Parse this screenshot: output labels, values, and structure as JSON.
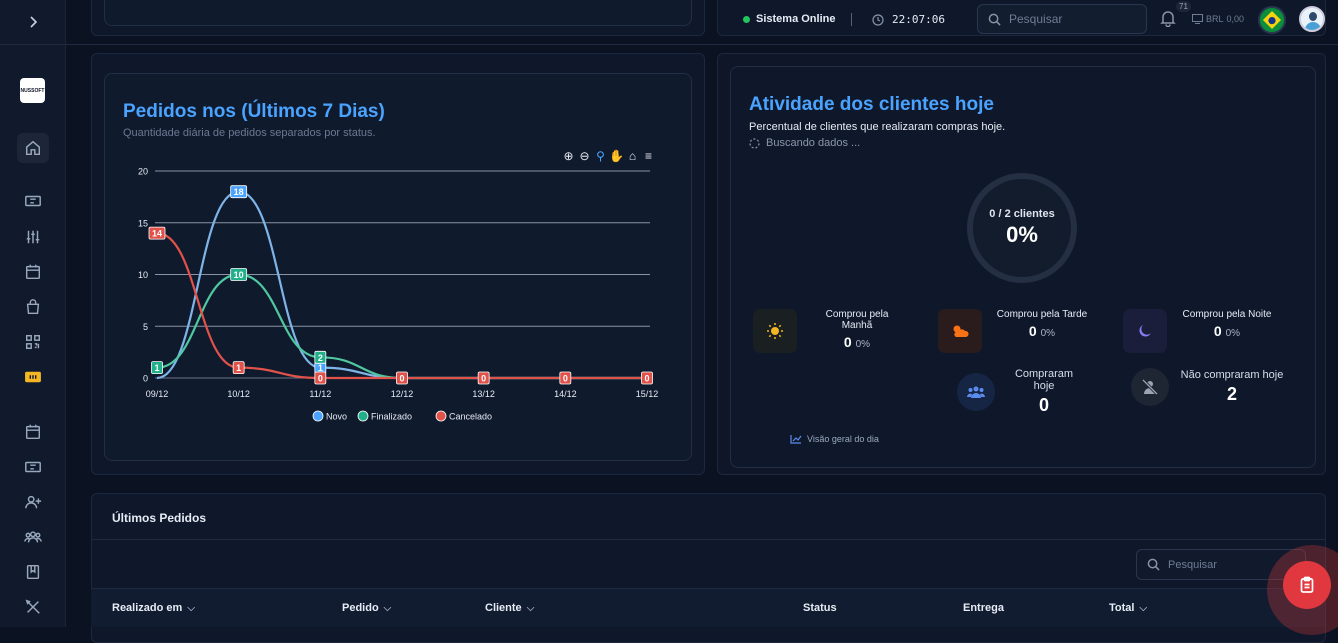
{
  "topbar": {
    "status_text": "Sistema Online",
    "time": "22:07:06",
    "search_placeholder": "Pesquisar",
    "notifications_count": "71",
    "currency": "BRL",
    "balance": "0,00"
  },
  "sidebar": {
    "logo_text": "NUSSOFT"
  },
  "orders_chart": {
    "title": "Pedidos nos (Últimos 7 Dias)",
    "subtitle": "Quantidade diária de pedidos separados por status."
  },
  "chart_data": {
    "type": "line",
    "categories": [
      "09/12",
      "10/12",
      "11/12",
      "12/12",
      "13/12",
      "14/12",
      "15/12"
    ],
    "ylim": [
      0,
      20
    ],
    "yticks": [
      0,
      5,
      10,
      15,
      20
    ],
    "grid": true,
    "legend_position": "bottom",
    "series": [
      {
        "name": "Novo",
        "color": "#4aa3ff",
        "values": [
          0,
          18,
          1,
          0,
          0,
          0,
          0
        ]
      },
      {
        "name": "Finalizado",
        "color": "#22b08a",
        "values": [
          1,
          10,
          2,
          0,
          0,
          0,
          0
        ]
      },
      {
        "name": "Cancelado",
        "color": "#e0524a",
        "values": [
          14,
          1,
          0,
          0,
          0,
          0,
          0
        ]
      }
    ]
  },
  "activity": {
    "title": "Atividade dos clientes hoje",
    "subtitle": "Percentual de clientes que realizaram compras hoje.",
    "loading": "Buscando dados ...",
    "ring_label": "0 / 2 clientes",
    "ring_percent": "0%",
    "periods": [
      {
        "label": "Comprou pela Manhã",
        "value": "0",
        "pct": "0%",
        "icon": "sun-icon"
      },
      {
        "label": "Comprou pela Tarde",
        "value": "0",
        "pct": "0%",
        "icon": "sun-cloud-icon"
      },
      {
        "label": "Comprou pela Noite",
        "value": "0",
        "pct": "0%",
        "icon": "moon-icon"
      }
    ],
    "bought_label": "Compraram hoje",
    "bought_value": "0",
    "not_bought_label": "Não compraram hoje",
    "not_bought_value": "2",
    "overview_link": "Visão geral do dia"
  },
  "orders": {
    "title": "Últimos Pedidos",
    "search_placeholder": "Pesquisar",
    "columns": [
      "Realizado em",
      "Pedido",
      "Cliente",
      "Status",
      "Entrega",
      "Total"
    ]
  },
  "colors": {
    "accent": "#4aa3ff",
    "online": "#22c55e",
    "fab": "#e0383e"
  }
}
